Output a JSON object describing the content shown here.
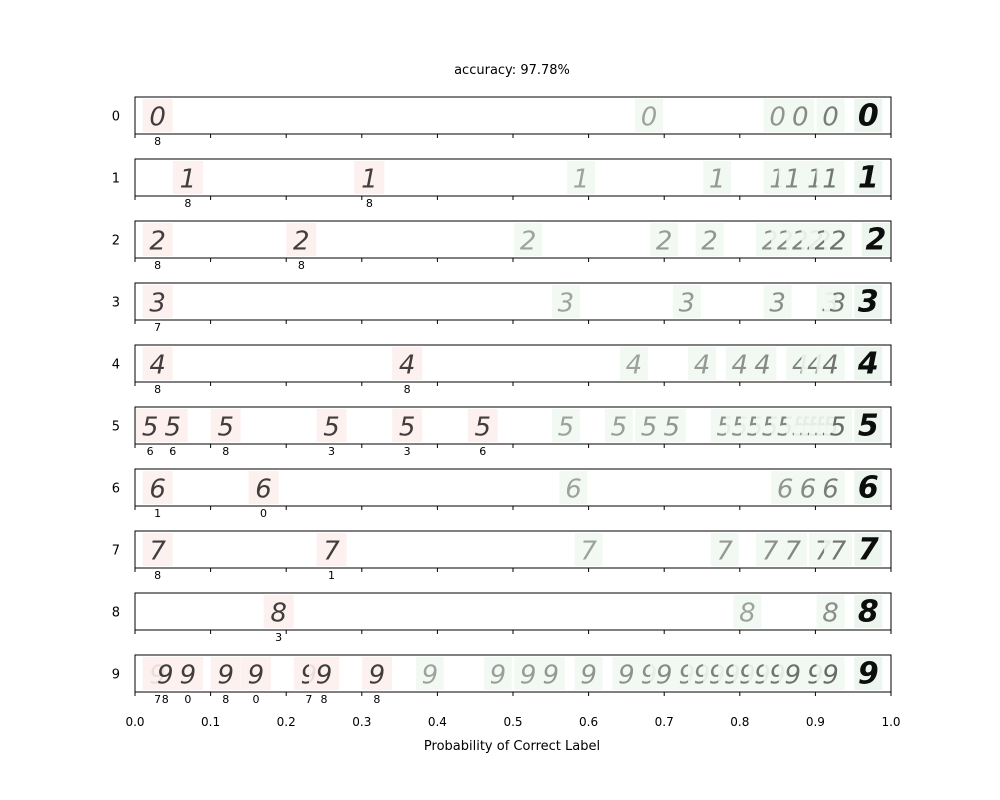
{
  "chart_data": {
    "type": "scatter",
    "title": "accuracy: 97.78%",
    "xlabel": "Probability of Correct Label",
    "ylabel": "",
    "xlim": [
      0.0,
      1.0
    ],
    "x_ticks": [
      "0.0",
      "0.1",
      "0.2",
      "0.3",
      "0.4",
      "0.5",
      "0.6",
      "0.7",
      "0.8",
      "0.9",
      "1.0"
    ],
    "grid": false,
    "colors": {
      "incorrect": "#d9928f",
      "correct": "#2e8b57",
      "correct_dark": "#006400"
    },
    "rows": [
      {
        "label": "0",
        "incorrect": [
          {
            "p": 0.03,
            "pred": "8"
          }
        ],
        "correct": [
          0.68,
          0.85,
          0.88,
          0.92,
          0.97
        ]
      },
      {
        "label": "1",
        "incorrect": [
          {
            "p": 0.07,
            "pred": "8"
          },
          {
            "p": 0.31,
            "pred": "8"
          }
        ],
        "correct": [
          0.59,
          0.77,
          0.85,
          0.87,
          0.9,
          0.92,
          0.97
        ]
      },
      {
        "label": "2",
        "incorrect": [
          {
            "p": 0.03,
            "pred": "8"
          },
          {
            "p": 0.22,
            "pred": "8"
          }
        ],
        "correct": [
          0.52,
          0.7,
          0.76,
          0.84,
          0.86,
          0.88,
          0.9,
          0.91,
          0.93,
          0.98
        ]
      },
      {
        "label": "3",
        "incorrect": [
          {
            "p": 0.03,
            "pred": "7"
          }
        ],
        "correct": [
          0.57,
          0.73,
          0.85,
          0.92,
          0.93,
          0.97
        ]
      },
      {
        "label": "4",
        "incorrect": [
          {
            "p": 0.03,
            "pred": "8"
          },
          {
            "p": 0.36,
            "pred": "8"
          }
        ],
        "correct": [
          0.66,
          0.75,
          0.8,
          0.83,
          0.88,
          0.9,
          0.92,
          0.97
        ]
      },
      {
        "label": "5",
        "incorrect": [
          {
            "p": 0.02,
            "pred": "6"
          },
          {
            "p": 0.05,
            "pred": "6"
          },
          {
            "p": 0.12,
            "pred": "8"
          },
          {
            "p": 0.26,
            "pred": "3"
          },
          {
            "p": 0.36,
            "pred": "3"
          },
          {
            "p": 0.46,
            "pred": "6"
          }
        ],
        "correct": [
          0.57,
          0.64,
          0.68,
          0.71,
          0.78,
          0.8,
          0.82,
          0.84,
          0.86,
          0.88,
          0.89,
          0.9,
          0.91,
          0.92,
          0.93,
          0.97
        ]
      },
      {
        "label": "6",
        "incorrect": [
          {
            "p": 0.03,
            "pred": "1"
          },
          {
            "p": 0.17,
            "pred": "0"
          }
        ],
        "correct": [
          0.58,
          0.86,
          0.89,
          0.92,
          0.97
        ]
      },
      {
        "label": "7",
        "incorrect": [
          {
            "p": 0.03,
            "pred": "8"
          },
          {
            "p": 0.26,
            "pred": "1"
          }
        ],
        "correct": [
          0.6,
          0.78,
          0.84,
          0.87,
          0.91,
          0.93,
          0.97
        ]
      },
      {
        "label": "8",
        "incorrect": [
          {
            "p": 0.19,
            "pred": "3"
          }
        ],
        "correct": [
          0.81,
          0.92,
          0.97
        ]
      },
      {
        "label": "9",
        "incorrect": [
          {
            "p": 0.03,
            "pred": "7"
          },
          {
            "p": 0.04,
            "pred": "8"
          },
          {
            "p": 0.07,
            "pred": "0"
          },
          {
            "p": 0.12,
            "pred": "8"
          },
          {
            "p": 0.16,
            "pred": "0"
          },
          {
            "p": 0.23,
            "pred": "7"
          },
          {
            "p": 0.25,
            "pred": "8"
          },
          {
            "p": 0.32,
            "pred": "8"
          }
        ],
        "correct": [
          0.39,
          0.48,
          0.52,
          0.55,
          0.6,
          0.65,
          0.68,
          0.7,
          0.73,
          0.75,
          0.77,
          0.79,
          0.81,
          0.83,
          0.85,
          0.87,
          0.9,
          0.92,
          0.97
        ]
      }
    ]
  }
}
